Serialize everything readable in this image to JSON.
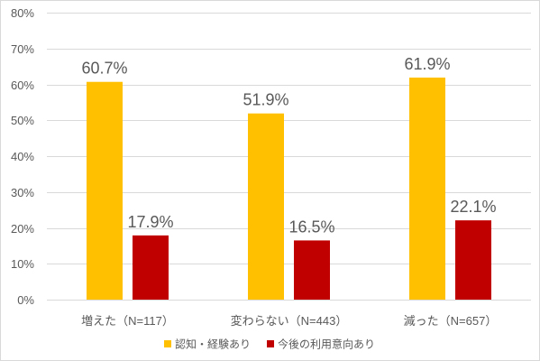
{
  "chart_data": {
    "type": "bar",
    "categories": [
      "増えた（N=117）",
      "変わらない（N=443）",
      "減った（N=657）"
    ],
    "series": [
      {
        "name": "認知・経験あり",
        "color": "#FFC000",
        "values": [
          60.7,
          51.9,
          61.9
        ],
        "labels": [
          "60.7%",
          "51.9%",
          "61.9%"
        ]
      },
      {
        "name": "今後の利用意向あり",
        "color": "#C00000",
        "values": [
          17.9,
          16.5,
          22.1
        ],
        "labels": [
          "17.9%",
          "16.5%",
          "22.1%"
        ]
      }
    ],
    "ylim": [
      0,
      80
    ],
    "yticks": [
      0,
      10,
      20,
      30,
      40,
      50,
      60,
      70,
      80
    ],
    "ytick_labels": [
      "0%",
      "10%",
      "20%",
      "30%",
      "40%",
      "50%",
      "60%",
      "70%",
      "80%"
    ],
    "grid": true,
    "legend": "bottom"
  },
  "colors": {
    "text": "#595959",
    "grid": "#D9D9D9",
    "border": "#D9D9D9",
    "background": "#FFFFFF"
  }
}
